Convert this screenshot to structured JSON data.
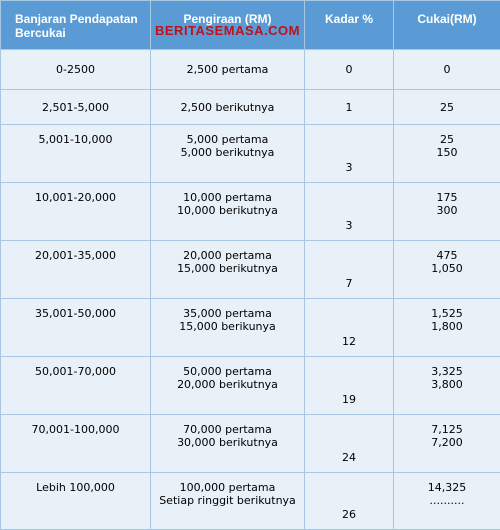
{
  "header": {
    "range": "Banjaran Pendapatan Bercukai",
    "calc": "Pengiraan (RM)",
    "rate": "Kadar %",
    "tax": "Cukai(RM)",
    "watermark": "BERITASEMASA.COM"
  },
  "rows": [
    {
      "range": "0-2500",
      "calc": [
        "2,500 pertama"
      ],
      "rate": "0",
      "tax": [
        "0"
      ]
    },
    {
      "range": "2,501-5,000",
      "calc": [
        "2,500 berikutnya"
      ],
      "rate": "1",
      "tax": [
        "25"
      ]
    },
    {
      "range": "5,001-10,000",
      "calc": [
        "5,000 pertama",
        "5,000 berikutnya"
      ],
      "rate": "3",
      "tax": [
        "25",
        "150"
      ]
    },
    {
      "range": "10,001-20,000",
      "calc": [
        "10,000 pertama",
        "10,000 berikutnya"
      ],
      "rate": "3",
      "tax": [
        "175",
        "300"
      ]
    },
    {
      "range": "20,001-35,000",
      "calc": [
        "20,000 pertama",
        "15,000 berikutnya"
      ],
      "rate": "7",
      "tax": [
        "475",
        "1,050"
      ]
    },
    {
      "range": "35,001-50,000",
      "calc": [
        "35,000 pertama",
        "15,000 berikunya"
      ],
      "rate": "12",
      "tax": [
        "1,525",
        "1,800"
      ]
    },
    {
      "range": "50,001-70,000",
      "calc": [
        "50,000 pertama",
        "20,000 berikutnya"
      ],
      "rate": "19",
      "tax": [
        "3,325",
        "3,800"
      ]
    },
    {
      "range": "70,001-100,000",
      "calc": [
        "70,000 pertama",
        "30,000 berikutnya"
      ],
      "rate": "24",
      "tax": [
        "7,125",
        "7,200"
      ]
    },
    {
      "range": "Lebih 100,000",
      "calc": [
        "100,000 pertama",
        "Setiap ringgit berikutnya"
      ],
      "rate": "26",
      "tax": [
        "14,325",
        ".........."
      ]
    }
  ]
}
